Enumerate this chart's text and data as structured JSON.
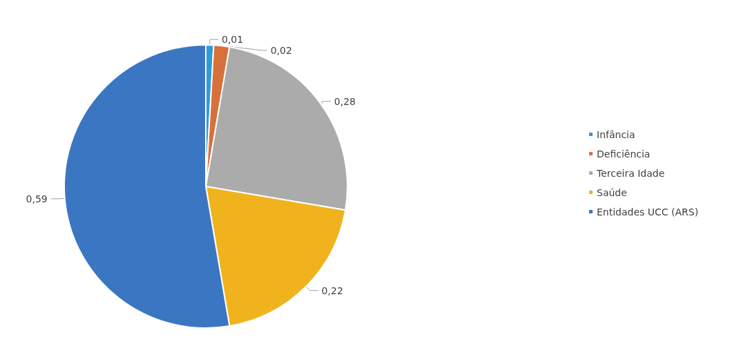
{
  "chart_data": {
    "type": "pie",
    "categories": [
      "Infância",
      "Deficiência",
      "Terceira Idade",
      "Saúde",
      "Entidades UCC (ARS)"
    ],
    "values": [
      0.01,
      0.02,
      0.28,
      0.22,
      0.59
    ],
    "value_labels": [
      "0,01",
      "0,02",
      "0,28",
      "0,22",
      "0,59"
    ],
    "colors": [
      "#2f9bd6",
      "#d8703c",
      "#ababab",
      "#f0b31e",
      "#3b76c2"
    ],
    "legend": "right"
  }
}
